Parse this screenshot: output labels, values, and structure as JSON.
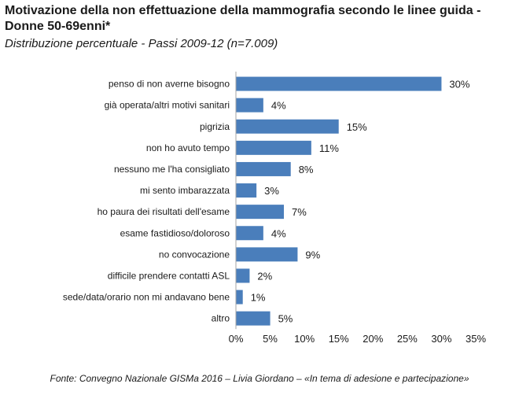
{
  "title": "Motivazione della non effettuazione della mammografia secondo le linee guida - Donne 50-69enni*",
  "subtitle": "Distribuzione percentuale - Passi 2009-12 (n=7.009)",
  "source": "Fonte: Convegno Nazionale GISMa 2016 – Livia Giordano – «In tema di adesione e partecipazione»",
  "colors": {
    "bar": "#4a7ebb",
    "axis": "#a6a6a6"
  },
  "chart_data": {
    "type": "bar",
    "orientation": "horizontal",
    "categories": [
      "penso di non averne bisogno",
      "già operata/altri motivi sanitari",
      "pigrizia",
      "non ho avuto tempo",
      "nessuno me l'ha consigliato",
      "mi sento imbarazzata",
      "ho paura dei risultati dell'esame",
      "esame fastidioso/doloroso",
      "no convocazione",
      "difficile prendere contatti ASL",
      "sede/data/orario non mi andavano bene",
      "altro"
    ],
    "values": [
      30,
      4,
      15,
      11,
      8,
      3,
      7,
      4,
      9,
      2,
      1,
      5
    ],
    "value_labels": [
      "30%",
      "4%",
      "15%",
      "11%",
      "8%",
      "3%",
      "7%",
      "4%",
      "9%",
      "2%",
      "1%",
      "5%"
    ],
    "xlim": [
      0,
      35
    ],
    "xticks": [
      "0%",
      "5%",
      "10%",
      "15%",
      "20%",
      "25%",
      "30%",
      "35%"
    ],
    "grid": false
  }
}
